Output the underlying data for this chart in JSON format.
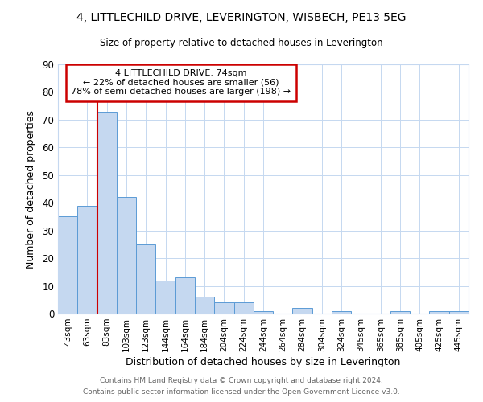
{
  "title": "4, LITTLECHILD DRIVE, LEVERINGTON, WISBECH, PE13 5EG",
  "subtitle": "Size of property relative to detached houses in Leverington",
  "xlabel": "Distribution of detached houses by size in Leverington",
  "ylabel": "Number of detached properties",
  "categories": [
    "43sqm",
    "63sqm",
    "83sqm",
    "103sqm",
    "123sqm",
    "144sqm",
    "164sqm",
    "184sqm",
    "204sqm",
    "224sqm",
    "244sqm",
    "264sqm",
    "284sqm",
    "304sqm",
    "324sqm",
    "345sqm",
    "365sqm",
    "385sqm",
    "405sqm",
    "425sqm",
    "445sqm"
  ],
  "values": [
    35,
    39,
    73,
    42,
    25,
    12,
    13,
    6,
    4,
    4,
    1,
    0,
    2,
    0,
    1,
    0,
    0,
    1,
    0,
    1,
    1
  ],
  "bar_color": "#c5d8f0",
  "bar_edge_color": "#5b9bd5",
  "ylim": [
    0,
    90
  ],
  "yticks": [
    0,
    10,
    20,
    30,
    40,
    50,
    60,
    70,
    80,
    90
  ],
  "vline_color": "#cc0000",
  "annotation_title": "4 LITTLECHILD DRIVE: 74sqm",
  "annotation_line1": "← 22% of detached houses are smaller (56)",
  "annotation_line2": "78% of semi-detached houses are larger (198) →",
  "annotation_box_color": "#ffffff",
  "annotation_box_edge_color": "#cc0000",
  "footer1": "Contains HM Land Registry data © Crown copyright and database right 2024.",
  "footer2": "Contains public sector information licensed under the Open Government Licence v3.0.",
  "background_color": "#ffffff",
  "grid_color": "#c5d8f0"
}
